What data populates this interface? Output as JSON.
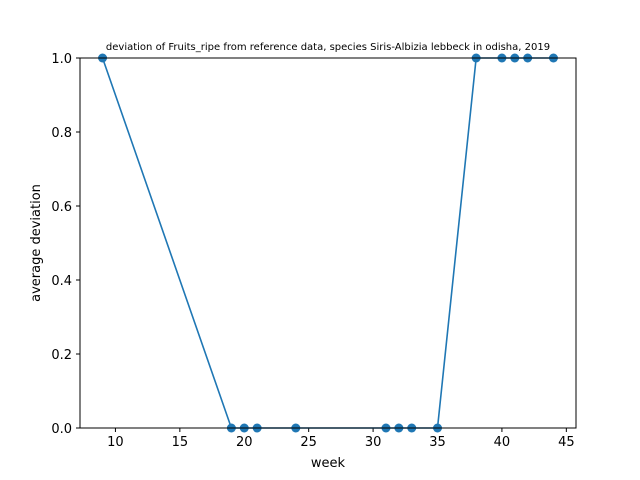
{
  "chart_data": {
    "type": "line",
    "title": "deviation of Fruits_ripe from reference data, species Siris-Albizia lebbeck in odisha, 2019",
    "xlabel": "week",
    "ylabel": "average deviation",
    "xlim": [
      7.25,
      45.75
    ],
    "ylim": [
      0,
      1
    ],
    "xticks": [
      10,
      15,
      20,
      25,
      30,
      35,
      40,
      45
    ],
    "yticks": [
      0.0,
      0.2,
      0.4,
      0.6,
      0.8,
      1.0
    ],
    "grid": false,
    "series": [
      {
        "color": "#1f77b4",
        "x": [
          9,
          19,
          20,
          21,
          24,
          31,
          32,
          33,
          35,
          38,
          40,
          41,
          42,
          44
        ],
        "y": [
          1,
          0,
          0,
          0,
          0,
          0,
          0,
          0,
          0,
          1,
          1,
          1,
          1,
          1
        ]
      }
    ]
  }
}
